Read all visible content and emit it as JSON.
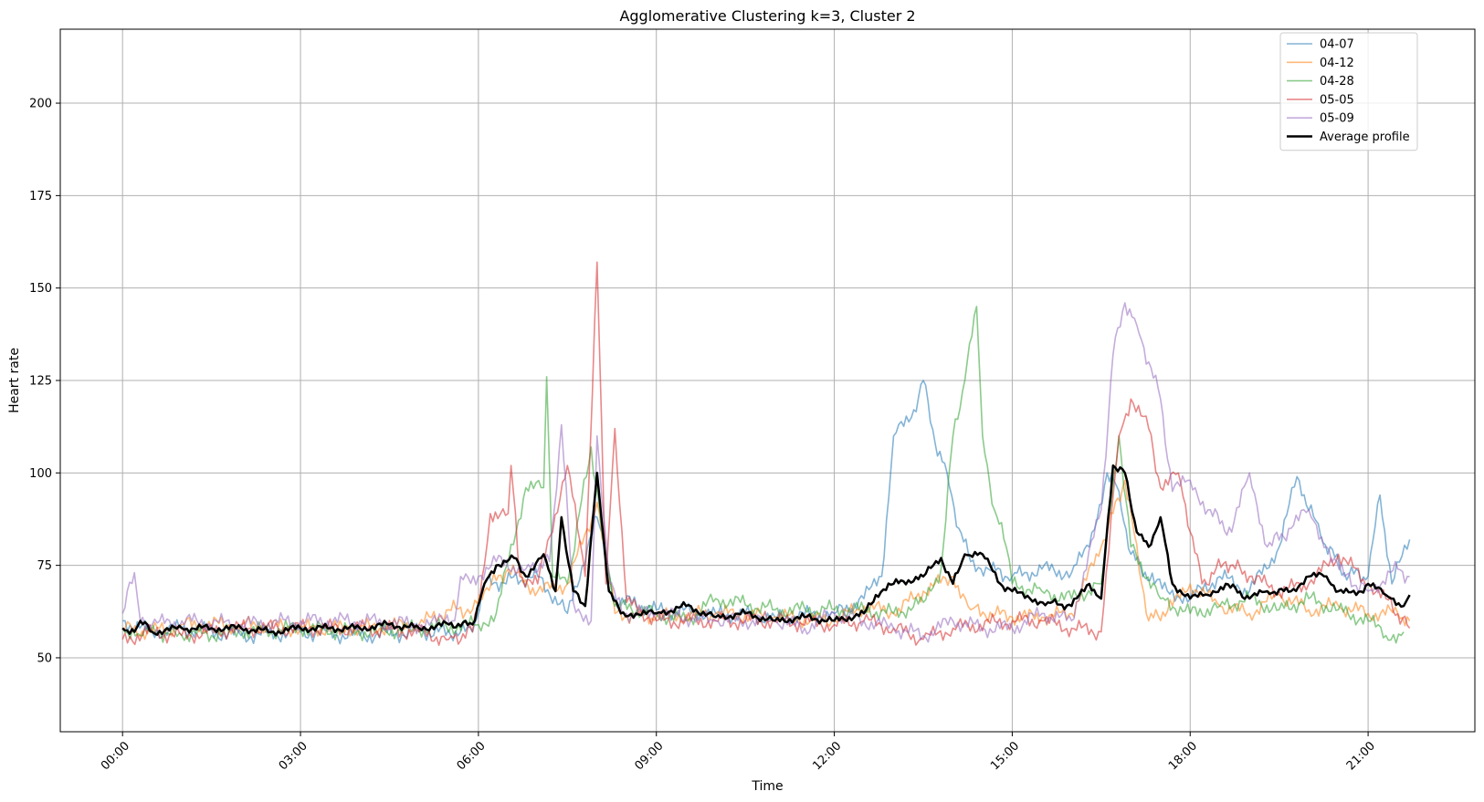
{
  "chart_data": {
    "type": "line",
    "title": "Agglomerative Clustering k=3, Cluster 2",
    "xlabel": "Time",
    "ylabel": "Heart rate",
    "xlim": [
      -1.05,
      22.8
    ],
    "ylim": [
      30,
      220
    ],
    "x_ticks": [
      0,
      3,
      6,
      9,
      12,
      15,
      18,
      21
    ],
    "x_tick_labels": [
      "00:00",
      "03:00",
      "06:00",
      "09:00",
      "12:00",
      "15:00",
      "18:00",
      "21:00"
    ],
    "y_ticks": [
      50,
      75,
      100,
      125,
      150,
      175,
      200
    ],
    "y_tick_labels": [
      "50",
      "75",
      "100",
      "125",
      "150",
      "175",
      "200"
    ],
    "grid": true,
    "legend_position": "top-right",
    "legend": [
      "04-07",
      "04-12",
      "04-28",
      "05-05",
      "05-09",
      "Average profile"
    ],
    "series": [
      {
        "name": "04-07",
        "color": "#1f77b4",
        "points": [
          [
            0,
            60
          ],
          [
            0.5,
            57
          ],
          [
            1,
            58
          ],
          [
            2,
            56
          ],
          [
            3,
            57
          ],
          [
            4,
            56
          ],
          [
            5,
            57
          ],
          [
            5.9,
            57
          ],
          [
            6.1,
            70
          ],
          [
            7,
            72
          ],
          [
            7.5,
            62
          ],
          [
            8,
            88
          ],
          [
            8.3,
            66
          ],
          [
            9,
            63
          ],
          [
            10,
            62
          ],
          [
            11,
            61
          ],
          [
            12,
            62
          ],
          [
            12.5,
            66
          ],
          [
            12.8,
            72
          ],
          [
            13,
            110
          ],
          [
            13.3,
            115
          ],
          [
            13.5,
            125
          ],
          [
            13.7,
            108
          ],
          [
            13.9,
            100
          ],
          [
            14.1,
            85
          ],
          [
            14.3,
            76
          ],
          [
            14.6,
            74
          ],
          [
            15,
            72
          ],
          [
            15.5,
            74
          ],
          [
            16,
            73
          ],
          [
            16.3,
            80
          ],
          [
            16.6,
            100
          ],
          [
            16.8,
            95
          ],
          [
            17,
            78
          ],
          [
            17.4,
            70
          ],
          [
            18,
            66
          ],
          [
            18.5,
            72
          ],
          [
            19,
            68
          ],
          [
            19.5,
            80
          ],
          [
            19.8,
            99
          ],
          [
            20.2,
            83
          ],
          [
            20.6,
            73
          ],
          [
            21,
            72
          ],
          [
            21.2,
            94
          ],
          [
            21.4,
            70
          ],
          [
            21.7,
            82
          ]
        ]
      },
      {
        "name": "04-12",
        "color": "#ff7f0e",
        "points": [
          [
            0,
            58
          ],
          [
            0.5,
            57
          ],
          [
            1,
            59
          ],
          [
            2,
            59
          ],
          [
            3,
            58
          ],
          [
            4,
            58
          ],
          [
            5,
            59
          ],
          [
            5.5,
            63
          ],
          [
            5.9,
            63
          ],
          [
            6.1,
            68
          ],
          [
            6.5,
            74
          ],
          [
            7,
            68
          ],
          [
            7.5,
            70
          ],
          [
            8,
            92
          ],
          [
            8.3,
            62
          ],
          [
            9,
            61
          ],
          [
            10,
            62
          ],
          [
            11,
            61
          ],
          [
            12,
            60
          ],
          [
            12.5,
            64
          ],
          [
            13,
            62
          ],
          [
            13.5,
            68
          ],
          [
            14,
            72
          ],
          [
            14.3,
            63
          ],
          [
            15,
            61
          ],
          [
            15.5,
            61
          ],
          [
            16,
            62
          ],
          [
            16.5,
            80
          ],
          [
            16.9,
            98
          ],
          [
            17.3,
            60
          ],
          [
            17.7,
            64
          ],
          [
            18,
            70
          ],
          [
            18.5,
            64
          ],
          [
            19,
            62
          ],
          [
            19.5,
            67
          ],
          [
            20,
            63
          ],
          [
            20.5,
            64
          ],
          [
            21,
            62
          ],
          [
            21.5,
            62
          ],
          [
            21.7,
            60
          ]
        ]
      },
      {
        "name": "04-28",
        "color": "#2ca02c",
        "points": [
          [
            0,
            58
          ],
          [
            0.3,
            56
          ],
          [
            0.6,
            57
          ],
          [
            1,
            56
          ],
          [
            2,
            57
          ],
          [
            3,
            58
          ],
          [
            4,
            57
          ],
          [
            5,
            58
          ],
          [
            6,
            59
          ],
          [
            6.3,
            62
          ],
          [
            6.8,
            96
          ],
          [
            7.1,
            96
          ],
          [
            7.15,
            126
          ],
          [
            7.25,
            72
          ],
          [
            7.5,
            70
          ],
          [
            7.9,
            107
          ],
          [
            8.1,
            82
          ],
          [
            8.3,
            64
          ],
          [
            9,
            62
          ],
          [
            9.5,
            60
          ],
          [
            10,
            66
          ],
          [
            11,
            63
          ],
          [
            12,
            63
          ],
          [
            12.5,
            63
          ],
          [
            13,
            62
          ],
          [
            13.5,
            65
          ],
          [
            13.8,
            74
          ],
          [
            14,
            110
          ],
          [
            14.2,
            125
          ],
          [
            14.4,
            145
          ],
          [
            14.5,
            110
          ],
          [
            14.7,
            90
          ],
          [
            14.9,
            80
          ],
          [
            15,
            70
          ],
          [
            15.5,
            68
          ],
          [
            16,
            66
          ],
          [
            16.5,
            70
          ],
          [
            16.8,
            110
          ],
          [
            17,
            80
          ],
          [
            17.5,
            66
          ],
          [
            18,
            62
          ],
          [
            18.5,
            64
          ],
          [
            19,
            66
          ],
          [
            19.5,
            63
          ],
          [
            20,
            66
          ],
          [
            20.5,
            63
          ],
          [
            21,
            60
          ],
          [
            21.3,
            56
          ],
          [
            21.6,
            57
          ]
        ]
      },
      {
        "name": "05-05",
        "color": "#d62728",
        "points": [
          [
            0,
            55
          ],
          [
            0.5,
            57
          ],
          [
            1,
            56
          ],
          [
            2,
            58
          ],
          [
            3,
            58
          ],
          [
            4,
            58
          ],
          [
            5,
            57
          ],
          [
            5.5,
            55
          ],
          [
            5.9,
            57
          ],
          [
            6.1,
            75
          ],
          [
            6.2,
            89
          ],
          [
            6.5,
            89
          ],
          [
            6.55,
            102
          ],
          [
            6.7,
            72
          ],
          [
            7,
            70
          ],
          [
            7.5,
            102
          ],
          [
            7.8,
            72
          ],
          [
            8,
            157
          ],
          [
            8.15,
            70
          ],
          [
            8.3,
            112
          ],
          [
            8.5,
            65
          ],
          [
            9,
            60
          ],
          [
            10,
            60
          ],
          [
            11,
            60
          ],
          [
            12,
            59
          ],
          [
            12.5,
            60
          ],
          [
            13,
            58
          ],
          [
            13.5,
            55
          ],
          [
            14,
            58
          ],
          [
            15,
            60
          ],
          [
            15.5,
            60
          ],
          [
            16,
            58
          ],
          [
            16.5,
            57
          ],
          [
            16.8,
            110
          ],
          [
            17,
            120
          ],
          [
            17.3,
            112
          ],
          [
            17.5,
            96
          ],
          [
            17.8,
            100
          ],
          [
            18.2,
            70
          ],
          [
            18.6,
            76
          ],
          [
            19,
            72
          ],
          [
            19.5,
            68
          ],
          [
            20,
            70
          ],
          [
            20.5,
            78
          ],
          [
            21,
            70
          ],
          [
            21.3,
            66
          ],
          [
            21.7,
            58
          ]
        ]
      },
      {
        "name": "05-09",
        "color": "#9467bd",
        "points": [
          [
            0,
            62
          ],
          [
            0.2,
            73
          ],
          [
            0.3,
            60
          ],
          [
            0.5,
            59
          ],
          [
            1,
            60
          ],
          [
            2,
            59
          ],
          [
            3,
            60
          ],
          [
            4,
            60
          ],
          [
            5,
            59
          ],
          [
            5.6,
            60
          ],
          [
            5.7,
            72
          ],
          [
            6,
            72
          ],
          [
            6.3,
            76
          ],
          [
            6.8,
            74
          ],
          [
            7.2,
            76
          ],
          [
            7.4,
            113
          ],
          [
            7.6,
            65
          ],
          [
            7.9,
            60
          ],
          [
            8,
            110
          ],
          [
            8.2,
            70
          ],
          [
            8.5,
            62
          ],
          [
            9,
            62
          ],
          [
            10,
            60
          ],
          [
            11,
            60
          ],
          [
            11.5,
            58
          ],
          [
            12,
            62
          ],
          [
            12.5,
            60
          ],
          [
            13,
            58
          ],
          [
            13.5,
            56
          ],
          [
            14,
            60
          ],
          [
            14.5,
            58
          ],
          [
            15,
            58
          ],
          [
            15.5,
            62
          ],
          [
            16,
            60
          ],
          [
            16.5,
            90
          ],
          [
            16.7,
            132
          ],
          [
            16.9,
            146
          ],
          [
            17.1,
            140
          ],
          [
            17.3,
            130
          ],
          [
            17.5,
            120
          ],
          [
            17.7,
            95
          ],
          [
            18,
            98
          ],
          [
            18.3,
            90
          ],
          [
            18.7,
            84
          ],
          [
            19,
            100
          ],
          [
            19.3,
            80
          ],
          [
            19.7,
            85
          ],
          [
            20,
            90
          ],
          [
            20.3,
            80
          ],
          [
            20.6,
            72
          ],
          [
            21,
            68
          ],
          [
            21.5,
            74
          ],
          [
            21.7,
            72
          ]
        ]
      },
      {
        "name": "Average profile",
        "color": "#000000",
        "points": [
          [
            0,
            58
          ],
          [
            0.2,
            57
          ],
          [
            0.3,
            60
          ],
          [
            0.5,
            57
          ],
          [
            1,
            58
          ],
          [
            1.5,
            58
          ],
          [
            2,
            58
          ],
          [
            2.5,
            57
          ],
          [
            3,
            58
          ],
          [
            3.5,
            58
          ],
          [
            4,
            58
          ],
          [
            4.5,
            59
          ],
          [
            5,
            58
          ],
          [
            5.5,
            59
          ],
          [
            5.9,
            59
          ],
          [
            6.1,
            70
          ],
          [
            6.3,
            75
          ],
          [
            6.6,
            77
          ],
          [
            6.8,
            72
          ],
          [
            7.1,
            78
          ],
          [
            7.3,
            68
          ],
          [
            7.4,
            88
          ],
          [
            7.6,
            68
          ],
          [
            7.8,
            64
          ],
          [
            8.0,
            100
          ],
          [
            8.2,
            68
          ],
          [
            8.4,
            62
          ],
          [
            9,
            62
          ],
          [
            9.5,
            64
          ],
          [
            10,
            61
          ],
          [
            10.5,
            62
          ],
          [
            11,
            60
          ],
          [
            11.5,
            61
          ],
          [
            12,
            60
          ],
          [
            12.5,
            62
          ],
          [
            12.7,
            67
          ],
          [
            13,
            70
          ],
          [
            13.5,
            72
          ],
          [
            13.8,
            77
          ],
          [
            14,
            70
          ],
          [
            14.2,
            78
          ],
          [
            14.5,
            78
          ],
          [
            14.8,
            70
          ],
          [
            15,
            68
          ],
          [
            15.3,
            66
          ],
          [
            15.6,
            65
          ],
          [
            16,
            64
          ],
          [
            16.3,
            70
          ],
          [
            16.5,
            66
          ],
          [
            16.7,
            102
          ],
          [
            16.9,
            100
          ],
          [
            17.1,
            84
          ],
          [
            17.3,
            80
          ],
          [
            17.5,
            88
          ],
          [
            17.7,
            70
          ],
          [
            18,
            66
          ],
          [
            18.3,
            67
          ],
          [
            18.6,
            70
          ],
          [
            19,
            66
          ],
          [
            19.3,
            68
          ],
          [
            19.7,
            68
          ],
          [
            20,
            72
          ],
          [
            20.3,
            72
          ],
          [
            20.5,
            68
          ],
          [
            20.8,
            67
          ],
          [
            21,
            70
          ],
          [
            21.3,
            67
          ],
          [
            21.6,
            64
          ],
          [
            21.7,
            67
          ]
        ]
      }
    ]
  }
}
